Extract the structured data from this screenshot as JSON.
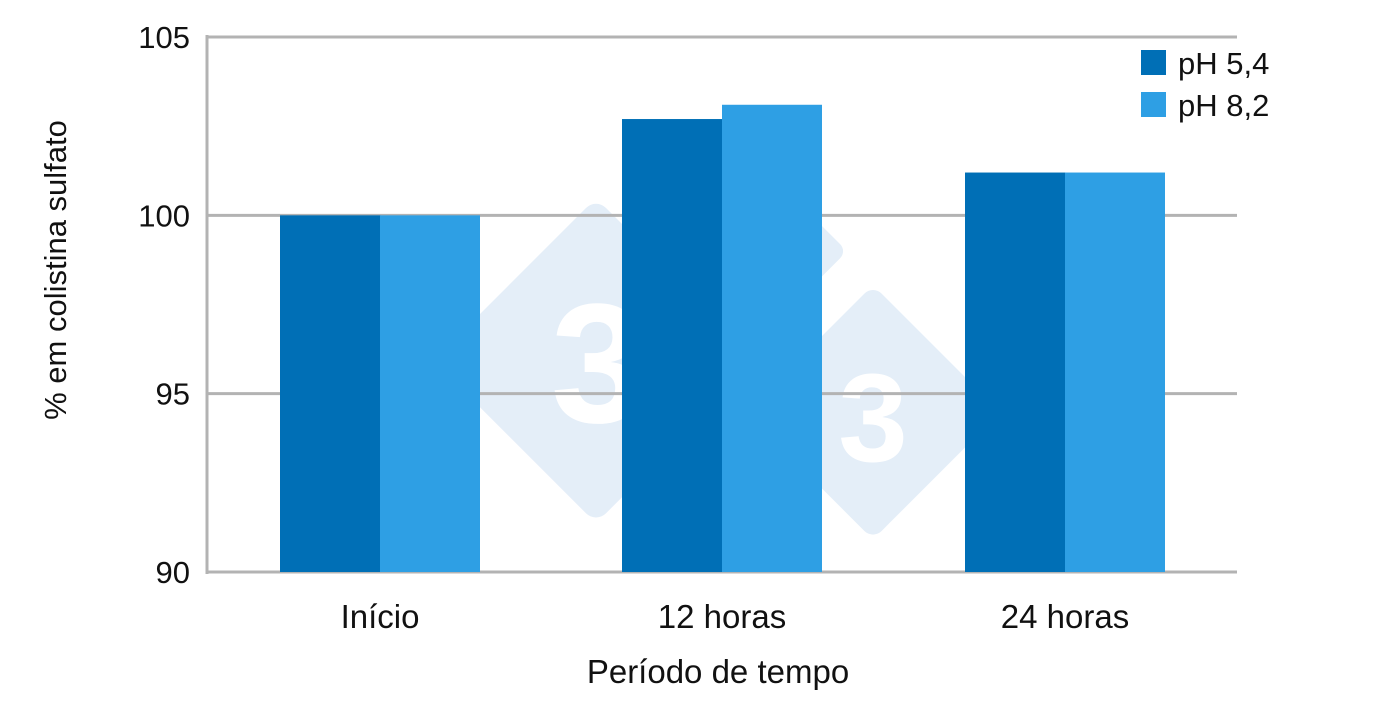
{
  "chart_data": {
    "type": "bar",
    "title": "",
    "xlabel": "Período de tempo",
    "ylabel": "% em colistina sulfato",
    "categories": [
      "Início",
      "12 horas",
      "24 horas"
    ],
    "series": [
      {
        "name": "pH 5,4",
        "color": "#006fb6",
        "values": [
          100,
          102.7,
          101.2
        ]
      },
      {
        "name": "pH 8,2",
        "color": "#2e9fe4",
        "values": [
          100,
          103.1,
          101.2
        ]
      }
    ],
    "ylim": [
      90,
      105
    ],
    "yticks": [
      "90",
      "95",
      "100",
      "105"
    ],
    "grid": true,
    "legend_position": "top-right"
  },
  "colors": {
    "grid": "#b3b3b3",
    "watermark": "#e4eef8"
  }
}
